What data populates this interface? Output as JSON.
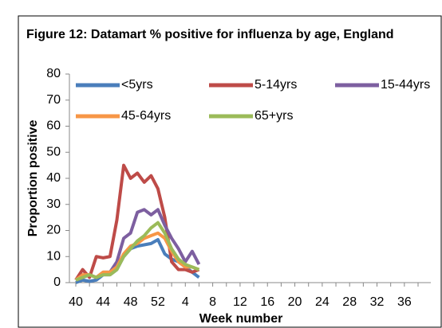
{
  "chart_data": {
    "type": "line",
    "title": "Figure 12: Datamart % positive for influenza by age, England",
    "x_label": "Week number",
    "y_label": "Proportion positive",
    "categories": [
      "40",
      null,
      null,
      null,
      "44",
      null,
      null,
      null,
      "48",
      null,
      null,
      null,
      "52",
      null,
      null,
      null,
      "4",
      null,
      null,
      null,
      "8",
      null,
      null,
      null,
      "12",
      null,
      null,
      null,
      "16",
      null,
      null,
      null,
      "20",
      null,
      null,
      null,
      "24",
      null,
      null,
      null,
      "28",
      null,
      null,
      null,
      "32",
      null,
      null,
      null,
      "36",
      null,
      null,
      null
    ],
    "ylim": [
      0,
      80
    ],
    "yticks": [
      0,
      10,
      20,
      30,
      40,
      50,
      60,
      70,
      80
    ],
    "grid": false,
    "legend": "top",
    "series": [
      {
        "name": "<5yrs",
        "color": "#4a7ebb",
        "values": [
          0,
          1,
          0.5,
          1,
          3,
          3,
          5,
          10,
          13,
          14,
          14.5,
          15,
          16.5,
          11,
          9,
          8,
          6,
          4,
          2,
          null,
          null,
          null,
          null,
          null,
          null,
          null,
          null,
          null,
          null,
          null,
          null,
          null,
          null,
          null,
          null,
          null,
          null,
          null,
          null,
          null,
          null,
          null,
          null,
          null,
          null,
          null,
          null,
          null,
          null,
          null,
          null,
          null
        ]
      },
      {
        "name": "5-14yrs",
        "color": "#be4b48",
        "values": [
          1,
          5,
          2,
          10,
          9.5,
          10,
          24,
          45,
          40,
          42,
          38.5,
          41,
          36,
          25,
          8,
          5,
          5,
          4,
          5,
          null,
          null,
          null,
          null,
          null,
          null,
          null,
          null,
          null,
          null,
          null,
          null,
          null,
          null,
          null,
          null,
          null,
          null,
          null,
          null,
          null,
          null,
          null,
          null,
          null,
          null,
          null,
          null,
          null,
          null,
          null,
          null,
          null
        ]
      },
      {
        "name": "15-44yrs",
        "color": "#7d5fa0",
        "values": [
          1,
          2,
          3,
          2,
          4,
          4,
          8,
          17,
          19,
          27,
          28,
          26,
          28,
          22,
          17,
          13,
          8,
          12,
          7,
          null,
          null,
          null,
          null,
          null,
          null,
          null,
          null,
          null,
          null,
          null,
          null,
          null,
          null,
          null,
          null,
          null,
          null,
          null,
          null,
          null,
          null,
          null,
          null,
          null,
          null,
          null,
          null,
          null,
          null,
          null,
          null,
          null
        ]
      },
      {
        "name": "45-64yrs",
        "color": "#f79646",
        "values": [
          1,
          3,
          3,
          2,
          4,
          4,
          6,
          11,
          14,
          15,
          17,
          18,
          19,
          17,
          12,
          8,
          6,
          6,
          5,
          null,
          null,
          null,
          null,
          null,
          null,
          null,
          null,
          null,
          null,
          null,
          null,
          null,
          null,
          null,
          null,
          null,
          null,
          null,
          null,
          null,
          null,
          null,
          null,
          null,
          null,
          null,
          null,
          null,
          null,
          null,
          null,
          null
        ]
      },
      {
        "name": "65+yrs",
        "color": "#9bbb59",
        "values": [
          1,
          2,
          3,
          2,
          3,
          3,
          5,
          10,
          13,
          16,
          18,
          21,
          23,
          19,
          13,
          9,
          7,
          6,
          5,
          null,
          null,
          null,
          null,
          null,
          null,
          null,
          null,
          null,
          null,
          null,
          null,
          null,
          null,
          null,
          null,
          null,
          null,
          null,
          null,
          null,
          null,
          null,
          null,
          null,
          null,
          null,
          null,
          null,
          null,
          null,
          null,
          null
        ]
      }
    ]
  }
}
